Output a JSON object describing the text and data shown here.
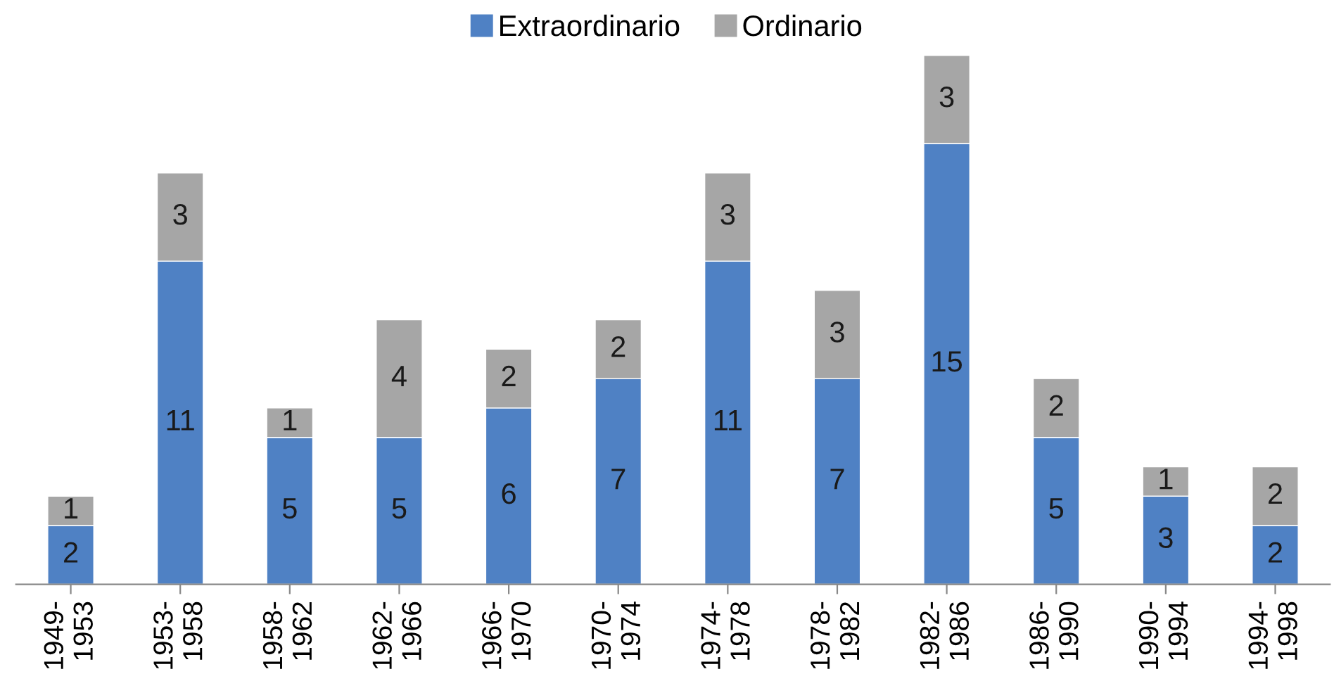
{
  "chart_data": {
    "type": "bar",
    "stacked": true,
    "data_labels": true,
    "legend": "top",
    "grid": false,
    "categories": [
      "1949-\n1953",
      "1953-\n1958",
      "1958-\n1962",
      "1962-\n1966",
      "1966-\n1970",
      "1970-\n1974",
      "1974-\n1978",
      "1978-\n1982",
      "1982-\n1986",
      "1986-\n1990",
      "1990-\n1994",
      "1994-\n1998"
    ],
    "series": [
      {
        "name": "Extraordinario",
        "color": "#4f81c4",
        "values": [
          2,
          11,
          5,
          5,
          6,
          7,
          11,
          7,
          15,
          5,
          3,
          2
        ]
      },
      {
        "name": "Ordinario",
        "color": "#a6a6a6",
        "values": [
          1,
          3,
          1,
          4,
          2,
          2,
          3,
          3,
          3,
          2,
          1,
          2
        ]
      }
    ]
  }
}
